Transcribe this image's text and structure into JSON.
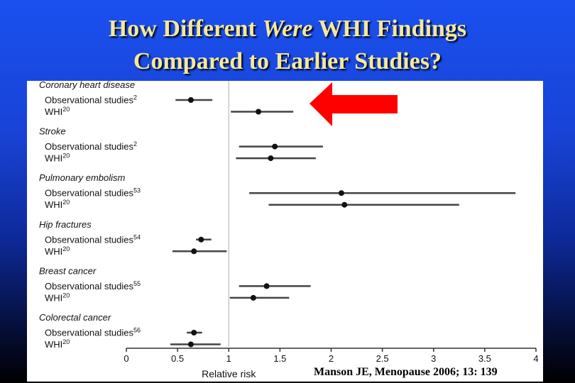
{
  "slide": {
    "title_line1_a": "How Different ",
    "title_line1_b": "Were",
    "title_line1_c": " WHI Findings",
    "title_line2": "Compared to Earlier Studies?",
    "citation": "Manson JE, Menopause 2006; 13: 139",
    "arrow_color": "#ff0000"
  },
  "chart_data": {
    "type": "forest",
    "xlabel": "Relative risk",
    "xlim": [
      0,
      4
    ],
    "xticks": [
      0,
      0.5,
      1,
      1.5,
      2,
      2.5,
      3,
      3.5,
      4
    ],
    "xtick_labels": [
      "0",
      "0.5",
      "1",
      "1.5",
      "2",
      "2.5",
      "3",
      "3.5",
      "4"
    ],
    "reference_line": 1,
    "groups": [
      {
        "name": "Coronary heart disease",
        "rows": [
          {
            "label": "Observational studies",
            "sup": "2",
            "estimate": 0.63,
            "lower": 0.48,
            "upper": 0.84
          },
          {
            "label": "WHI",
            "sup": "20",
            "estimate": 1.29,
            "lower": 1.02,
            "upper": 1.63
          }
        ]
      },
      {
        "name": "Stroke",
        "rows": [
          {
            "label": "Observational studies",
            "sup": "2",
            "estimate": 1.45,
            "lower": 1.1,
            "upper": 1.92
          },
          {
            "label": "WHI",
            "sup": "20",
            "estimate": 1.41,
            "lower": 1.07,
            "upper": 1.85
          }
        ]
      },
      {
        "name": "Pulmonary embolism",
        "rows": [
          {
            "label": "Observational studies",
            "sup": "53",
            "estimate": 2.1,
            "lower": 1.2,
            "upper": 3.8
          },
          {
            "label": "WHI",
            "sup": "20",
            "estimate": 2.13,
            "lower": 1.39,
            "upper": 3.25
          }
        ]
      },
      {
        "name": "Hip fractures",
        "rows": [
          {
            "label": "Observational studies",
            "sup": "54",
            "estimate": 0.73,
            "lower": 0.68,
            "upper": 0.83
          },
          {
            "label": "WHI",
            "sup": "20",
            "estimate": 0.66,
            "lower": 0.45,
            "upper": 0.98
          }
        ]
      },
      {
        "name": "Breast cancer",
        "rows": [
          {
            "label": "Observational studies",
            "sup": "55",
            "estimate": 1.37,
            "lower": 1.1,
            "upper": 1.8
          },
          {
            "label": "WHI",
            "sup": "20",
            "estimate": 1.24,
            "lower": 1.01,
            "upper": 1.59
          }
        ]
      },
      {
        "name": "Colorectal cancer",
        "rows": [
          {
            "label": "Observational studies",
            "sup": "56",
            "estimate": 0.66,
            "lower": 0.59,
            "upper": 0.74
          },
          {
            "label": "WHI",
            "sup": "20",
            "estimate": 0.63,
            "lower": 0.43,
            "upper": 0.92
          }
        ]
      }
    ]
  }
}
